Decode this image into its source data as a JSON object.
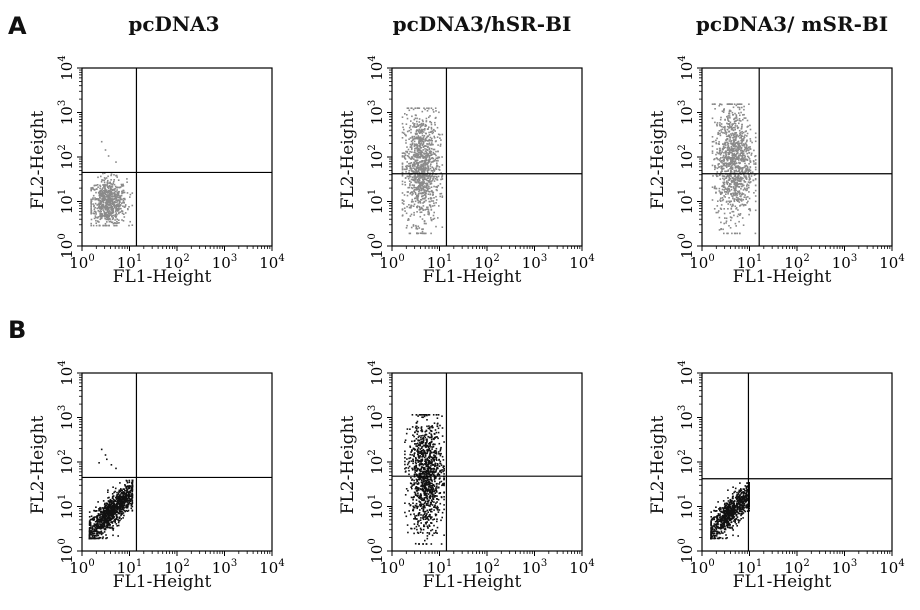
{
  "panels": {
    "A": "A",
    "B": "B"
  },
  "columns": [
    "pcDNA3",
    "pcDNA3/hSR-BI",
    "pcDNA3/ mSR-BI"
  ],
  "colors": {
    "A_points": "#8a8a8a",
    "B_points": "#111111",
    "frame": "#000000"
  },
  "chart_data": [
    {
      "type": "scatter",
      "row": "A",
      "title": "pcDNA3",
      "xlabel": "FL1-Height",
      "ylabel": "FL2-Height",
      "xscale": "log",
      "yscale": "log",
      "xlim": [
        1,
        10000
      ],
      "ylim": [
        1,
        10000
      ],
      "xticks": [
        "10^0",
        "10^1",
        "10^2",
        "10^3",
        "10^4"
      ],
      "yticks": [
        "10^0",
        "10^1",
        "10^2",
        "10^3",
        "10^4"
      ],
      "quadrant_x": 14,
      "quadrant_y": 45,
      "population": {
        "x_range": [
          1.5,
          11
        ],
        "y_range": [
          3,
          45
        ],
        "center": [
          3.5,
          10
        ],
        "count": 700,
        "stragglers": [
          [
            3,
            150
          ],
          [
            2.5,
            230
          ],
          [
            5,
            80
          ],
          [
            3.5,
            110
          ]
        ]
      }
    },
    {
      "type": "scatter",
      "row": "A",
      "title": "pcDNA3/hSR-BI",
      "xlabel": "FL1-Height",
      "ylabel": "FL2-Height",
      "xscale": "log",
      "yscale": "log",
      "xlim": [
        1,
        10000
      ],
      "ylim": [
        1,
        10000
      ],
      "xticks": [
        "10^0",
        "10^1",
        "10^2",
        "10^3",
        "10^4"
      ],
      "yticks": [
        "10^0",
        "10^1",
        "10^2",
        "10^3",
        "10^4"
      ],
      "quadrant_x": 14,
      "quadrant_y": 42,
      "population": {
        "x_range": [
          1.6,
          11
        ],
        "y_range": [
          2,
          1300
        ],
        "center": [
          4,
          60
        ],
        "count": 1100,
        "stragglers": []
      }
    },
    {
      "type": "scatter",
      "row": "A",
      "title": "pcDNA3/ mSR-BI",
      "xlabel": "FL1-Height",
      "ylabel": "FL2-Height",
      "xscale": "log",
      "yscale": "log",
      "xlim": [
        1,
        10000
      ],
      "ylim": [
        1,
        10000
      ],
      "xticks": [
        "10^0",
        "10^1",
        "10^2",
        "10^3",
        "10^4"
      ],
      "yticks": [
        "10^0",
        "10^1",
        "10^2",
        "10^3",
        "10^4"
      ],
      "quadrant_x": 16,
      "quadrant_y": 42,
      "population": {
        "x_range": [
          1.6,
          13
        ],
        "y_range": [
          2,
          1600
        ],
        "center": [
          4.5,
          80
        ],
        "count": 1100,
        "stragglers": []
      }
    },
    {
      "type": "scatter",
      "row": "B",
      "title": "pcDNA3",
      "xlabel": "FL1-Height",
      "ylabel": "FL2-Height",
      "xscale": "log",
      "yscale": "log",
      "xlim": [
        1,
        10000
      ],
      "ylim": [
        1,
        10000
      ],
      "xticks": [
        "10^0",
        "10^1",
        "10^2",
        "10^3",
        "10^4"
      ],
      "yticks": [
        "10^0",
        "10^1",
        "10^2",
        "10^3",
        "10^4"
      ],
      "quadrant_x": 14,
      "quadrant_y": 45,
      "population": {
        "x_range": [
          1.4,
          11
        ],
        "y_range": [
          2,
          40
        ],
        "center": [
          4,
          8
        ],
        "count": 1100,
        "diagonal": true,
        "stragglers": [
          [
            3,
            150
          ],
          [
            2.5,
            200
          ],
          [
            4,
            90
          ],
          [
            5,
            75
          ],
          [
            3.2,
            120
          ],
          [
            2.2,
            100
          ]
        ]
      }
    },
    {
      "type": "scatter",
      "row": "B",
      "title": "pcDNA3/hSR-BI",
      "xlabel": "FL1-Height",
      "ylabel": "FL2-Height",
      "xscale": "log",
      "yscale": "log",
      "xlim": [
        1,
        10000
      ],
      "ylim": [
        1,
        10000
      ],
      "xticks": [
        "10^0",
        "10^1",
        "10^2",
        "10^3",
        "10^4"
      ],
      "yticks": [
        "10^0",
        "10^1",
        "10^2",
        "10^3",
        "10^4"
      ],
      "quadrant_x": 14,
      "quadrant_y": 48,
      "population": {
        "x_range": [
          1.8,
          12
        ],
        "y_range": [
          1.5,
          1200
        ],
        "center": [
          5,
          50
        ],
        "count": 1100,
        "stragglers": []
      }
    },
    {
      "type": "scatter",
      "row": "B",
      "title": "pcDNA3/ mSR-BI",
      "xlabel": "FL1-Height",
      "ylabel": "FL2-Height",
      "xscale": "log",
      "yscale": "log",
      "xlim": [
        1,
        10000
      ],
      "ylim": [
        1,
        10000
      ],
      "xticks": [
        "10^0",
        "10^1",
        "10^2",
        "10^3",
        "10^4"
      ],
      "yticks": [
        "10^0",
        "10^1",
        "10^2",
        "10^3",
        "10^4"
      ],
      "quadrant_x": 9.5,
      "quadrant_y": 42,
      "population": {
        "x_range": [
          1.5,
          9.5
        ],
        "y_range": [
          2,
          35
        ],
        "center": [
          4,
          8
        ],
        "count": 900,
        "diagonal": true,
        "stragglers": []
      }
    }
  ]
}
